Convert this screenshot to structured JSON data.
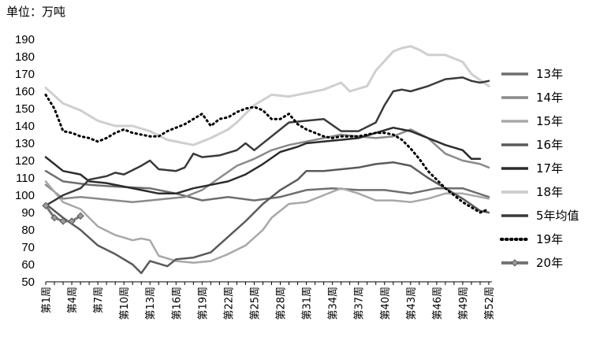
{
  "chart_data": {
    "type": "line",
    "unit_label": "单位：万吨",
    "ylim": [
      50,
      190
    ],
    "y_ticks": [
      50,
      60,
      70,
      80,
      90,
      100,
      110,
      120,
      130,
      140,
      150,
      160,
      170,
      180,
      190
    ],
    "x_range": [
      1,
      52
    ],
    "x_ticks": [
      {
        "week": 1,
        "label": "第1周"
      },
      {
        "week": 4,
        "label": "第4周"
      },
      {
        "week": 7,
        "label": "第7周"
      },
      {
        "week": 10,
        "label": "第10周"
      },
      {
        "week": 13,
        "label": "第13周"
      },
      {
        "week": 16,
        "label": "第16周"
      },
      {
        "week": 19,
        "label": "第19周"
      },
      {
        "week": 22,
        "label": "第22周"
      },
      {
        "week": 25,
        "label": "第25周"
      },
      {
        "week": 28,
        "label": "第28周"
      },
      {
        "week": 31,
        "label": "第31周"
      },
      {
        "week": 34,
        "label": "第34周"
      },
      {
        "week": 37,
        "label": "第37周"
      },
      {
        "week": 40,
        "label": "第40周"
      },
      {
        "week": 43,
        "label": "第43周"
      },
      {
        "week": 46,
        "label": "第46周"
      },
      {
        "week": 49,
        "label": "第49周"
      },
      {
        "week": 52,
        "label": "第52周"
      }
    ],
    "grid": false,
    "legend_position": "right",
    "series": [
      {
        "name": "13年",
        "color": "#6e6e6e",
        "width": 2.5,
        "style": "solid",
        "points": [
          [
            1,
            114
          ],
          [
            3,
            108
          ],
          [
            6,
            106
          ],
          [
            9,
            105
          ],
          [
            13,
            104
          ],
          [
            16,
            101
          ],
          [
            19,
            97
          ],
          [
            22,
            99
          ],
          [
            25,
            97
          ],
          [
            28,
            99
          ],
          [
            31,
            103
          ],
          [
            34,
            104
          ],
          [
            37,
            103
          ],
          [
            40,
            103
          ],
          [
            43,
            101
          ],
          [
            46,
            104
          ],
          [
            49,
            104
          ],
          [
            52,
            99
          ]
        ]
      },
      {
        "name": "14年",
        "color": "#8a8a8a",
        "width": 2.5,
        "style": "solid",
        "points": [
          [
            1,
            106
          ],
          [
            3,
            98
          ],
          [
            5,
            99
          ],
          [
            7,
            98
          ],
          [
            9,
            97
          ],
          [
            11,
            96
          ],
          [
            13,
            97
          ],
          [
            15,
            98
          ],
          [
            17,
            99
          ],
          [
            19,
            103
          ],
          [
            21,
            110
          ],
          [
            23,
            117
          ],
          [
            25,
            121
          ],
          [
            27,
            126
          ],
          [
            29,
            129
          ],
          [
            31,
            131
          ],
          [
            33,
            133
          ],
          [
            35,
            135
          ],
          [
            37,
            134
          ],
          [
            39,
            133
          ],
          [
            41,
            134
          ],
          [
            43,
            138
          ],
          [
            45,
            133
          ],
          [
            47,
            124
          ],
          [
            49,
            120
          ],
          [
            51,
            118
          ],
          [
            52,
            116
          ]
        ]
      },
      {
        "name": "15年",
        "color": "#a8a8a8",
        "width": 2.5,
        "style": "solid",
        "points": [
          [
            1,
            108
          ],
          [
            3,
            96
          ],
          [
            5,
            92
          ],
          [
            7,
            82
          ],
          [
            9,
            77
          ],
          [
            11,
            74
          ],
          [
            12,
            75
          ],
          [
            13,
            74
          ],
          [
            14,
            65
          ],
          [
            16,
            62
          ],
          [
            18,
            61
          ],
          [
            20,
            62
          ],
          [
            22,
            66
          ],
          [
            24,
            71
          ],
          [
            26,
            80
          ],
          [
            27,
            87
          ],
          [
            29,
            95
          ],
          [
            31,
            96
          ],
          [
            33,
            100
          ],
          [
            35,
            104
          ],
          [
            37,
            101
          ],
          [
            39,
            97
          ],
          [
            41,
            97
          ],
          [
            43,
            96
          ],
          [
            45,
            98
          ],
          [
            47,
            101
          ],
          [
            49,
            101
          ],
          [
            52,
            98
          ]
        ]
      },
      {
        "name": "16年",
        "color": "#5a5a5a",
        "width": 2.5,
        "style": "solid",
        "points": [
          [
            1,
            95
          ],
          [
            3,
            87
          ],
          [
            5,
            80
          ],
          [
            7,
            71
          ],
          [
            9,
            66
          ],
          [
            11,
            60
          ],
          [
            12,
            55
          ],
          [
            13,
            62
          ],
          [
            15,
            59
          ],
          [
            16,
            63
          ],
          [
            18,
            64
          ],
          [
            20,
            67
          ],
          [
            22,
            76
          ],
          [
            24,
            85
          ],
          [
            26,
            95
          ],
          [
            28,
            103
          ],
          [
            30,
            109
          ],
          [
            31,
            114
          ],
          [
            33,
            114
          ],
          [
            35,
            115
          ],
          [
            37,
            116
          ],
          [
            39,
            118
          ],
          [
            41,
            119
          ],
          [
            43,
            117
          ],
          [
            45,
            110
          ],
          [
            47,
            104
          ],
          [
            49,
            98
          ],
          [
            51,
            91
          ],
          [
            52,
            90
          ]
        ]
      },
      {
        "name": "17年",
        "color": "#2c2c2c",
        "width": 2.5,
        "style": "solid",
        "points": [
          [
            1,
            122
          ],
          [
            3,
            114
          ],
          [
            5,
            112
          ],
          [
            6,
            108
          ],
          [
            8,
            107
          ],
          [
            10,
            105
          ],
          [
            12,
            103
          ],
          [
            14,
            101
          ],
          [
            16,
            101
          ],
          [
            18,
            104
          ],
          [
            20,
            106
          ],
          [
            22,
            108
          ],
          [
            24,
            112
          ],
          [
            26,
            118
          ],
          [
            28,
            125
          ],
          [
            30,
            128
          ],
          [
            31,
            130
          ],
          [
            33,
            131
          ],
          [
            35,
            132
          ],
          [
            37,
            133
          ],
          [
            39,
            136
          ],
          [
            41,
            139
          ],
          [
            43,
            137
          ],
          [
            45,
            133
          ],
          [
            47,
            129
          ],
          [
            49,
            126
          ],
          [
            50,
            121
          ],
          [
            51,
            121
          ]
        ]
      },
      {
        "name": "18年",
        "color": "#cfcfcf",
        "width": 3,
        "style": "solid",
        "points": [
          [
            1,
            162
          ],
          [
            3,
            153
          ],
          [
            5,
            149
          ],
          [
            7,
            143
          ],
          [
            9,
            140
          ],
          [
            11,
            140
          ],
          [
            13,
            137
          ],
          [
            15,
            132
          ],
          [
            17,
            130
          ],
          [
            18,
            129
          ],
          [
            20,
            133
          ],
          [
            22,
            138
          ],
          [
            23,
            142
          ],
          [
            25,
            152
          ],
          [
            27,
            158
          ],
          [
            29,
            157
          ],
          [
            31,
            159
          ],
          [
            33,
            161
          ],
          [
            35,
            165
          ],
          [
            36,
            160
          ],
          [
            38,
            163
          ],
          [
            39,
            172
          ],
          [
            41,
            183
          ],
          [
            42,
            185
          ],
          [
            43,
            186
          ],
          [
            44,
            184
          ],
          [
            45,
            181
          ],
          [
            47,
            181
          ],
          [
            49,
            177
          ],
          [
            50,
            170
          ],
          [
            52,
            163
          ]
        ]
      },
      {
        "name": "5年均值",
        "color": "#3a3a3a",
        "width": 2.5,
        "style": "solid",
        "points": [
          [
            1,
            94
          ],
          [
            3,
            100
          ],
          [
            5,
            104
          ],
          [
            6,
            109
          ],
          [
            8,
            111
          ],
          [
            9,
            113
          ],
          [
            10,
            112
          ],
          [
            12,
            117
          ],
          [
            13,
            120
          ],
          [
            14,
            115
          ],
          [
            16,
            114
          ],
          [
            17,
            116
          ],
          [
            18,
            124
          ],
          [
            19,
            122
          ],
          [
            21,
            123
          ],
          [
            23,
            126
          ],
          [
            24,
            130
          ],
          [
            25,
            126
          ],
          [
            27,
            134
          ],
          [
            29,
            142
          ],
          [
            31,
            143
          ],
          [
            33,
            144
          ],
          [
            35,
            137
          ],
          [
            37,
            137
          ],
          [
            39,
            142
          ],
          [
            40,
            152
          ],
          [
            41,
            160
          ],
          [
            42,
            161
          ],
          [
            43,
            160
          ],
          [
            45,
            163
          ],
          [
            47,
            167
          ],
          [
            49,
            168
          ],
          [
            50,
            166
          ],
          [
            51,
            165
          ],
          [
            52,
            166
          ]
        ]
      },
      {
        "name": "19年",
        "color": "#000000",
        "width": 3,
        "style": "dotted",
        "points": [
          [
            1,
            158
          ],
          [
            2,
            150
          ],
          [
            3,
            137
          ],
          [
            4,
            136
          ],
          [
            5,
            134
          ],
          [
            6,
            133
          ],
          [
            7,
            131
          ],
          [
            8,
            133
          ],
          [
            9,
            136
          ],
          [
            10,
            138
          ],
          [
            11,
            136
          ],
          [
            12,
            135
          ],
          [
            13,
            134
          ],
          [
            14,
            134
          ],
          [
            15,
            137
          ],
          [
            16,
            139
          ],
          [
            17,
            141
          ],
          [
            18,
            144
          ],
          [
            19,
            147
          ],
          [
            20,
            140
          ],
          [
            21,
            144
          ],
          [
            22,
            145
          ],
          [
            23,
            148
          ],
          [
            24,
            150
          ],
          [
            25,
            151
          ],
          [
            26,
            149
          ],
          [
            27,
            144
          ],
          [
            28,
            144
          ],
          [
            29,
            147
          ],
          [
            30,
            141
          ],
          [
            31,
            138
          ],
          [
            32,
            136
          ],
          [
            33,
            134
          ],
          [
            34,
            133
          ],
          [
            35,
            134
          ],
          [
            36,
            134
          ],
          [
            37,
            134
          ],
          [
            38,
            135
          ],
          [
            39,
            136
          ],
          [
            40,
            136
          ],
          [
            41,
            135
          ],
          [
            42,
            132
          ],
          [
            43,
            127
          ],
          [
            44,
            121
          ],
          [
            45,
            114
          ],
          [
            46,
            109
          ],
          [
            47,
            104
          ],
          [
            48,
            100
          ],
          [
            49,
            96
          ],
          [
            50,
            93
          ],
          [
            51,
            90
          ],
          [
            52,
            92
          ]
        ]
      },
      {
        "name": "20年",
        "color": "#757575",
        "width": 3,
        "style": "marker",
        "points": [
          [
            1,
            94
          ],
          [
            2,
            87
          ],
          [
            3,
            85
          ],
          [
            4,
            85
          ],
          [
            5,
            88
          ]
        ]
      }
    ]
  }
}
